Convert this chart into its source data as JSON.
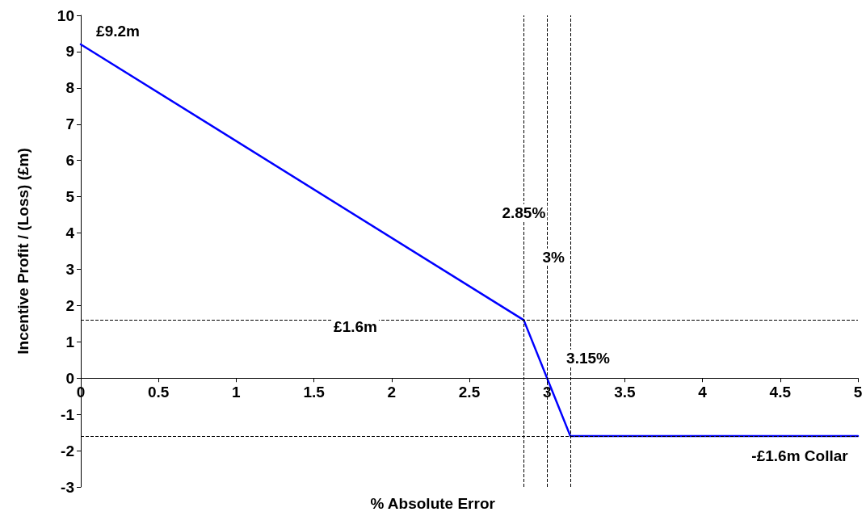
{
  "chart_data": {
    "type": "line",
    "ylabel": "Incentive Profit / (Loss) (£m)",
    "x": [
      0,
      2.85,
      3.15,
      5
    ],
    "series": [
      {
        "color": "#0000ff",
        "values": [
          9.2,
          1.6,
          -1.6,
          -1.6
        ]
      }
    ],
    "xlim": [
      0,
      5
    ],
    "xticks": [
      0,
      0.5,
      1,
      1.5,
      2,
      2.5,
      3,
      3.5,
      4,
      4.5,
      5
    ],
    "ylim": [
      -3,
      10
    ],
    "yticks": [
      -3,
      -2,
      -1,
      0,
      1,
      2,
      3,
      4,
      5,
      6,
      7,
      8,
      9,
      10
    ],
    "grid": false,
    "marker": "none",
    "line_style": "solid",
    "ref_lines": [
      {
        "axis": "x",
        "value": 2.85,
        "label": "2.85%",
        "color": "#000000",
        "line_style": "dashed"
      },
      {
        "axis": "x",
        "value": 3,
        "label": "3%",
        "color": "#000000",
        "line_style": "dashed"
      },
      {
        "axis": "x",
        "value": 3.15,
        "label": "3.15%",
        "color": "#000000",
        "line_style": "dashed"
      },
      {
        "axis": "y",
        "value": 1.6,
        "label": "£1.6m",
        "color": "#000000",
        "line_style": "dashed"
      },
      {
        "axis": "y",
        "value": -1.6,
        "color": "#000000",
        "line_style": "dashed"
      }
    ],
    "annotations": [
      {
        "text": "£9.2m",
        "x": 0,
        "y": 9.2
      },
      {
        "text": "-£1.6m Collar",
        "x": 5,
        "y": -1.6
      },
      "% Absolute Error"
    ]
  }
}
